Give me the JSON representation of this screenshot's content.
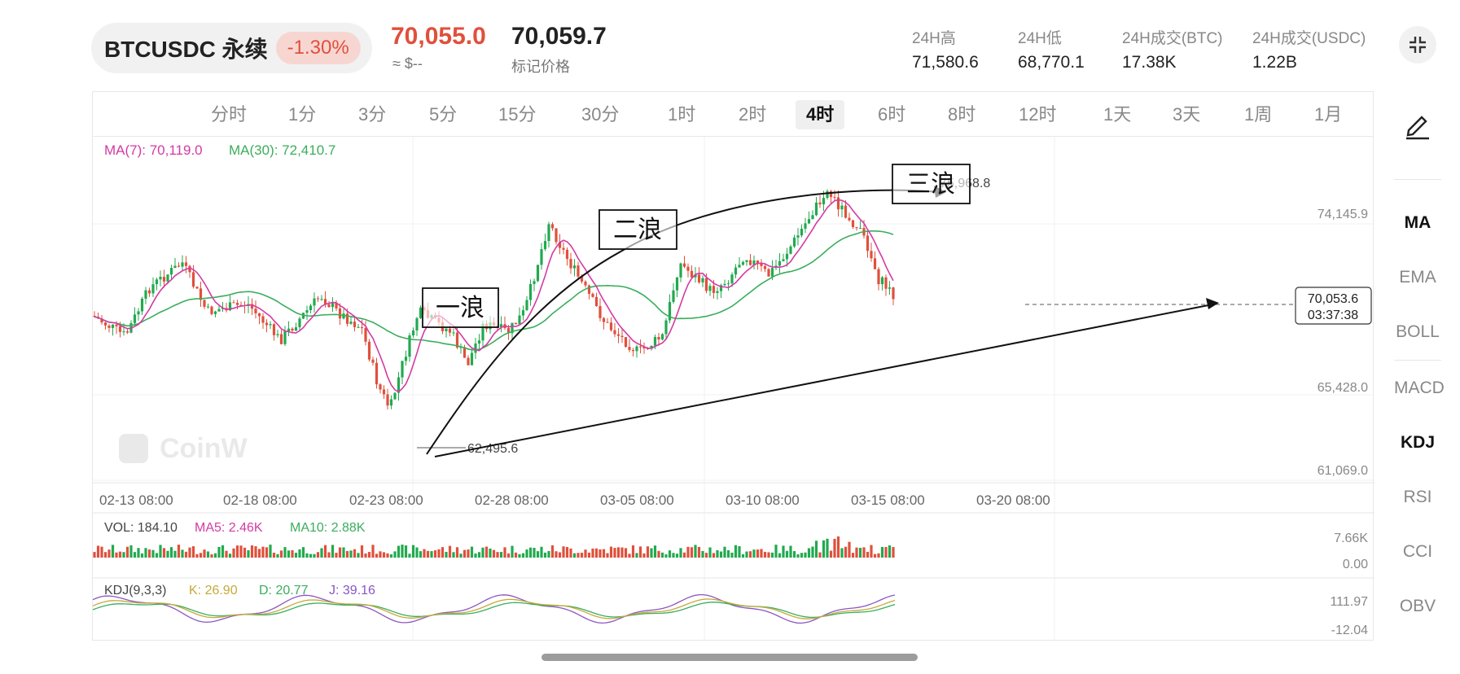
{
  "header": {
    "symbol": "BTCUSDC 永续",
    "change_pct": "-1.30%",
    "last_price": "70,055.0",
    "usd_approx": "≈ $--",
    "mark_price": "70,059.7",
    "mark_price_label": "标记价格",
    "stats": [
      {
        "label": "24H高",
        "value": "71,580.6"
      },
      {
        "label": "24H低",
        "value": "68,770.1"
      },
      {
        "label": "24H成交(BTC)",
        "value": "17.38K"
      },
      {
        "label": "24H成交(USDC)",
        "value": "1.22B"
      }
    ]
  },
  "intervals": [
    "分时",
    "1分",
    "3分",
    "5分",
    "15分",
    "30分",
    "1时",
    "2时",
    "4时",
    "6时",
    "8时",
    "12时",
    "1天",
    "3天",
    "1周",
    "1月"
  ],
  "active_interval": "4时",
  "indicators": [
    "MA",
    "EMA",
    "BOLL",
    "MACD",
    "KDJ",
    "RSI",
    "CCI",
    "OBV"
  ],
  "active_indicators": [
    "MA",
    "KDJ"
  ],
  "main_chart": {
    "ma_legend": [
      {
        "text": "MA(7): 70,119.0",
        "color": "#d43aa4"
      },
      {
        "text": "MA(30): 72,410.7",
        "color": "#3aae5c"
      }
    ],
    "price_axis": [
      "74,145.9",
      "65,428.0",
      "61,069.0"
    ],
    "current_price_tag": "70,053.6",
    "countdown": "03:37:38",
    "high_label": "75,968.8",
    "low_label": "62,495.6",
    "date_axis": [
      "02-13 08:00",
      "02-18 08:00",
      "02-23 08:00",
      "02-28 08:00",
      "03-05 08:00",
      "03-10 08:00",
      "03-15 08:00",
      "03-20 08:00"
    ],
    "annotations": [
      "一浪",
      "二浪",
      "三浪"
    ],
    "watermark": "CoinW"
  },
  "volume_panel": {
    "legend": [
      {
        "text": "VOL: 184.10",
        "color": "#444"
      },
      {
        "text": "MA5: 2.46K",
        "color": "#d43aa4"
      },
      {
        "text": "MA10: 2.88K",
        "color": "#3aae5c"
      }
    ],
    "axis": [
      "7.66K",
      "0.00"
    ]
  },
  "kdj_panel": {
    "legend": [
      {
        "text": "KDJ(9,3,3)",
        "color": "#444"
      },
      {
        "text": "K: 26.90",
        "color": "#c7a93a"
      },
      {
        "text": "D: 20.77",
        "color": "#3aae5c"
      },
      {
        "text": "J: 39.16",
        "color": "#8a56c2"
      }
    ],
    "axis": [
      "111.97",
      "-12.04"
    ]
  },
  "colors": {
    "up": "#22a94f",
    "down": "#e0503c",
    "ma7": "#d43aa4",
    "ma30": "#3aae5c"
  }
}
